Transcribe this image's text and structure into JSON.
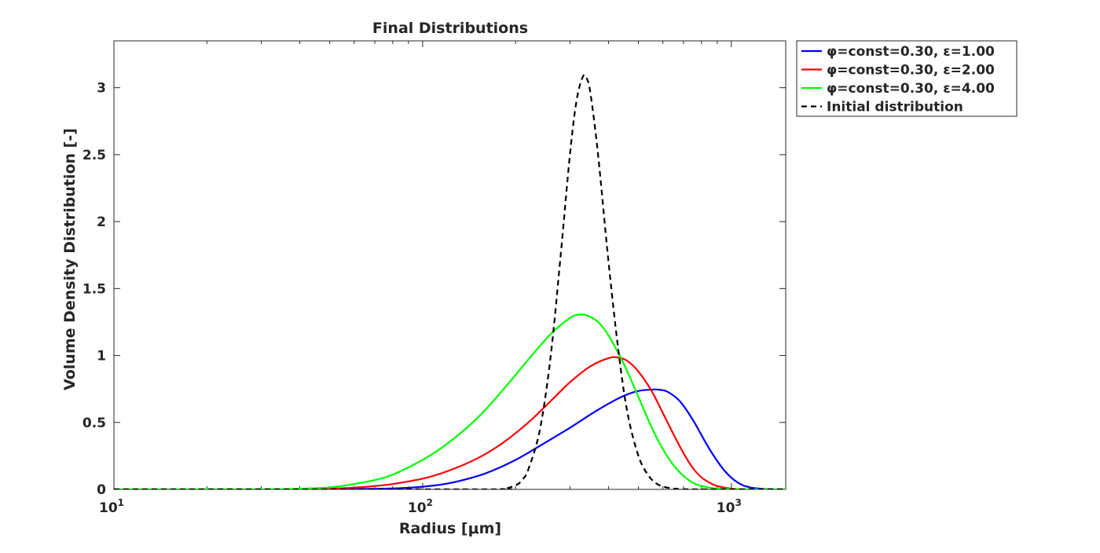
{
  "chart_data": {
    "type": "line",
    "title": "Final Distributions",
    "xlabel": "Radius [μm]",
    "ylabel": "Volume Density Distribution [-]",
    "x_scale": "log",
    "xlim": [
      10,
      1500
    ],
    "ylim": [
      0,
      3.35
    ],
    "x_ticks": [
      {
        "value": 10,
        "base": "10",
        "exp": "1"
      },
      {
        "value": 100,
        "base": "10",
        "exp": "2"
      },
      {
        "value": 1000,
        "base": "10",
        "exp": "3"
      }
    ],
    "y_ticks": [
      {
        "value": 0,
        "label": "0"
      },
      {
        "value": 0.5,
        "label": "0.5"
      },
      {
        "value": 1,
        "label": "1"
      },
      {
        "value": 1.5,
        "label": "1.5"
      },
      {
        "value": 2,
        "label": "2"
      },
      {
        "value": 2.5,
        "label": "2.5"
      },
      {
        "value": 3,
        "label": "3"
      }
    ],
    "grid": false,
    "legend_position": "outside-top-right",
    "series": [
      {
        "name": "φ=const=0.30, ε=1.00",
        "color": "#0000ff",
        "style": "solid",
        "x": [
          10,
          30,
          50,
          70,
          90,
          110,
          130,
          160,
          200,
          250,
          300,
          350,
          400,
          450,
          500,
          550,
          580,
          620,
          680,
          750,
          850,
          950,
          1050,
          1150,
          1300,
          1500
        ],
        "y": [
          0,
          0,
          0.001,
          0.004,
          0.012,
          0.03,
          0.06,
          0.12,
          0.22,
          0.35,
          0.46,
          0.56,
          0.64,
          0.7,
          0.735,
          0.745,
          0.745,
          0.73,
          0.66,
          0.52,
          0.3,
          0.14,
          0.05,
          0.015,
          0.002,
          0
        ]
      },
      {
        "name": "φ=const=0.30, ε=2.00",
        "color": "#ff0000",
        "style": "solid",
        "x": [
          10,
          30,
          50,
          60,
          70,
          80,
          100,
          120,
          150,
          180,
          220,
          260,
          300,
          350,
          400,
          430,
          460,
          500,
          550,
          600,
          650,
          700,
          750,
          800,
          850,
          900,
          1000,
          1100,
          1300,
          1500
        ],
        "y": [
          0,
          0,
          0.006,
          0.013,
          0.025,
          0.04,
          0.08,
          0.135,
          0.23,
          0.34,
          0.5,
          0.66,
          0.8,
          0.92,
          0.98,
          0.985,
          0.96,
          0.88,
          0.74,
          0.57,
          0.41,
          0.27,
          0.16,
          0.09,
          0.05,
          0.025,
          0.005,
          0.001,
          0,
          0
        ]
      },
      {
        "name": "φ=const=0.30, ε=4.00",
        "color": "#00ff00",
        "style": "solid",
        "x": [
          10,
          30,
          40,
          50,
          60,
          70,
          80,
          100,
          120,
          150,
          180,
          220,
          260,
          300,
          320,
          340,
          370,
          400,
          450,
          500,
          550,
          600,
          650,
          700,
          750,
          800,
          900,
          1000,
          1200,
          1500
        ],
        "y": [
          0,
          0.001,
          0.005,
          0.015,
          0.04,
          0.07,
          0.11,
          0.22,
          0.34,
          0.53,
          0.73,
          0.97,
          1.16,
          1.28,
          1.305,
          1.3,
          1.25,
          1.15,
          0.93,
          0.69,
          0.47,
          0.3,
          0.18,
          0.1,
          0.05,
          0.025,
          0.005,
          0.001,
          0,
          0
        ]
      },
      {
        "name": "Initial distribution",
        "color": "#000000",
        "style": "dashed",
        "x": [
          10,
          150,
          180,
          200,
          210,
          220,
          240,
          260,
          280,
          300,
          315,
          330,
          340,
          350,
          370,
          400,
          430,
          460,
          500,
          540,
          580,
          630,
          700,
          800,
          1000,
          1500
        ],
        "y": [
          0,
          0,
          0.002,
          0.03,
          0.07,
          0.15,
          0.45,
          1.0,
          1.75,
          2.5,
          2.9,
          3.08,
          3.07,
          2.95,
          2.5,
          1.7,
          1.05,
          0.58,
          0.25,
          0.1,
          0.035,
          0.01,
          0.001,
          0,
          0,
          0
        ]
      }
    ]
  }
}
